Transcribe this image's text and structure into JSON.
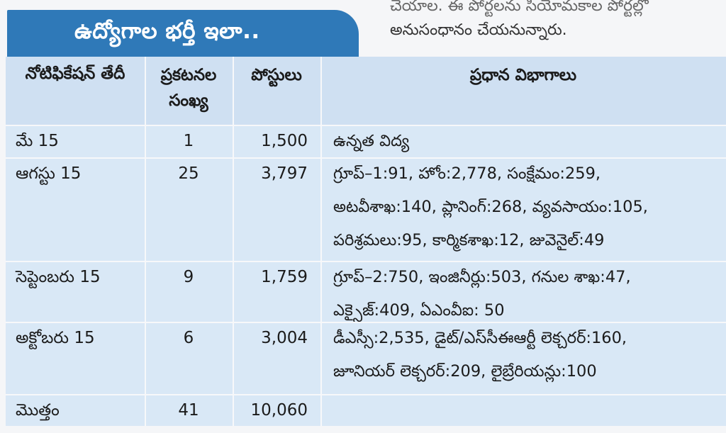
{
  "title": "ఉద్యోగాల భర్తీ ఇలా..",
  "side_note": {
    "line1": "చేయాల. ఈ పోర్టలను సియోమకాల పోర్టల్లో",
    "line2": "అనుసంధానం చేయనున్నారు."
  },
  "table": {
    "headers": {
      "notification_date": "నోటిఫికేషన్ తేదీ",
      "announcements_count": "ప్రకటనల సంఖ్య",
      "posts": "పోస్టులు",
      "main_departments": "ప్రధాన విభాగాలు"
    },
    "rows": [
      {
        "date": "మే 15",
        "count": "1",
        "posts": "1,500",
        "departments": [
          "ఉన్నత విద్య"
        ]
      },
      {
        "date": "ఆగస్టు 15",
        "count": "25",
        "posts": "3,797",
        "departments": [
          "గ్రూప్–1:91, హోం:2,778, సంక్షేమం:259,",
          "అటవీశాఖ:140, ప్లానింగ్:268, వ్యవసాయం:105,",
          "పరిశ్రమలు:95, కార్మికశాఖ:12, జువెనైల్:49"
        ]
      },
      {
        "date": "సెప్టెంబరు 15",
        "count": "9",
        "posts": "1,759",
        "departments": [
          "గ్రూప్–2:750, ఇంజినీర్లు:503, గనుల శాఖ:47,",
          "ఎక్సైజ్:409, ఏఎంవీఐ: 50"
        ]
      },
      {
        "date": "అక్టోబరు 15",
        "count": "6",
        "posts": "3,004",
        "departments": [
          "డీఎస్సీ:2,535, డైట్/ఎస్‌సీఈఆర్టీ లెక్చరర్:160,",
          "జూనియర్ లెక్చరర్:209, లైబ్రేరియన్లు:100"
        ]
      },
      {
        "date": "మొత్తం",
        "count": "41",
        "posts": "10,060",
        "departments": [
          ""
        ]
      }
    ]
  }
}
